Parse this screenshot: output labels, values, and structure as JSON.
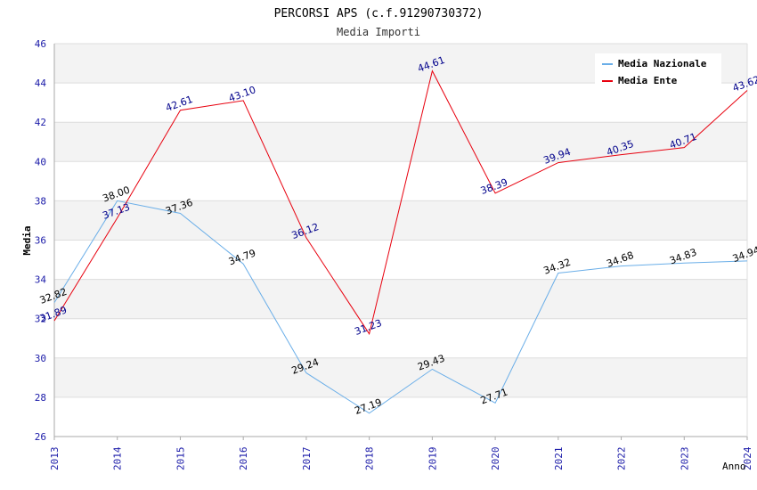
{
  "chart_data": {
    "type": "line",
    "title": "PERCORSI APS (c.f.91290730372)",
    "subtitle": "Media Importi",
    "xlabel": "Anno",
    "ylabel": "Media",
    "ylim": [
      26,
      46
    ],
    "yticks": [
      "26",
      "28",
      "30",
      "32",
      "34",
      "36",
      "38",
      "40",
      "42",
      "44",
      "46"
    ],
    "x": [
      "2013",
      "2014",
      "2015",
      "2016",
      "2017",
      "2018",
      "2019",
      "2020",
      "2021",
      "2022",
      "2023",
      "2024"
    ],
    "grid": true,
    "legend_position": "top-right",
    "series": [
      {
        "name": "Media Nazionale",
        "color": "#6aaee8",
        "label_color": "#000000",
        "values": [
          32.82,
          38.0,
          37.36,
          34.79,
          29.24,
          27.19,
          29.43,
          27.71,
          34.32,
          34.68,
          34.83,
          34.94
        ],
        "labels": [
          "32.82",
          "38.00",
          "37.36",
          "34.79",
          "29.24",
          "27.19",
          "29.43",
          "27.71",
          "34.32",
          "34.68",
          "34.83",
          "34.94"
        ]
      },
      {
        "name": "Media Ente",
        "color": "#e8000e",
        "label_color": "#00008b",
        "values": [
          31.89,
          37.13,
          42.61,
          43.1,
          36.12,
          31.23,
          44.61,
          38.39,
          39.94,
          40.35,
          40.71,
          43.62
        ],
        "labels": [
          "31.89",
          "37.13",
          "42.61",
          "43.10",
          "36.12",
          "31.23",
          "44.61",
          "38.39",
          "39.94",
          "40.35",
          "40.71",
          "43.62"
        ]
      }
    ]
  }
}
